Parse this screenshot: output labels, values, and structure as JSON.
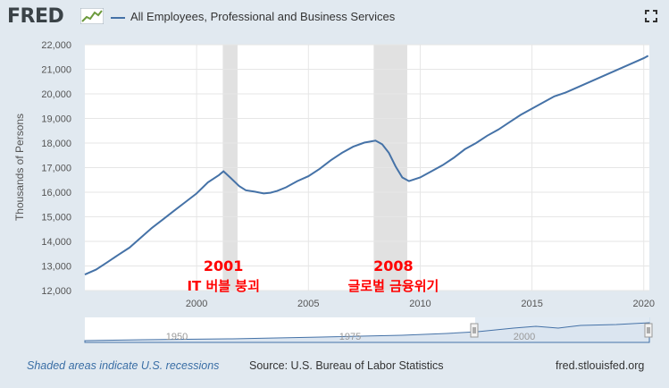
{
  "header": {
    "logo_text": "FRED",
    "series_title": "All Employees, Professional and Business Services",
    "series_color": "#4572a7"
  },
  "footer": {
    "recession_note": "Shaded areas indicate U.S. recessions",
    "source": "Source: U.S. Bureau of Labor Statistics",
    "site": "fred.stlouisfed.org"
  },
  "annotations": [
    {
      "year": "2001",
      "caption": "IT 버블 붕괴",
      "x_center": 2001.2
    },
    {
      "year": "2008",
      "caption": "글로벌 금융위기",
      "x_center": 2008.8
    }
  ],
  "chart_data": {
    "type": "line",
    "title": "All Employees, Professional and Business Services",
    "ylabel": "Thousands of Persons",
    "xlabel": "",
    "xlim": [
      1995.0,
      2020.25
    ],
    "ylim": [
      12000,
      22000
    ],
    "x_ticks": [
      2000,
      2005,
      2010,
      2015,
      2020
    ],
    "y_ticks": [
      12000,
      13000,
      14000,
      15000,
      16000,
      17000,
      18000,
      19000,
      20000,
      21000,
      22000
    ],
    "y_tick_labels": [
      "12,000",
      "13,000",
      "14,000",
      "15,000",
      "16,000",
      "17,000",
      "18,000",
      "19,000",
      "20,000",
      "21,000",
      "22,000"
    ],
    "grid": true,
    "recessions": [
      [
        2001.17,
        2001.83
      ],
      [
        2007.92,
        2009.42
      ]
    ],
    "series": [
      {
        "name": "All Employees, Professional and Business Services",
        "color": "#4572a7",
        "x": [
          1995.0,
          1995.5,
          1996.0,
          1996.5,
          1997.0,
          1997.5,
          1998.0,
          1998.5,
          1999.0,
          1999.5,
          2000.0,
          2000.5,
          2001.0,
          2001.2,
          2001.5,
          2001.9,
          2002.2,
          2002.6,
          2003.0,
          2003.3,
          2003.6,
          2004.0,
          2004.5,
          2005.0,
          2005.5,
          2006.0,
          2006.5,
          2007.0,
          2007.5,
          2008.0,
          2008.3,
          2008.6,
          2008.9,
          2009.2,
          2009.5,
          2010.0,
          2010.5,
          2011.0,
          2011.5,
          2012.0,
          2012.5,
          2013.0,
          2013.5,
          2014.0,
          2014.5,
          2015.0,
          2015.5,
          2016.0,
          2016.5,
          2017.0,
          2017.5,
          2018.0,
          2018.5,
          2019.0,
          2019.5,
          2020.0,
          2020.2
        ],
        "values": [
          12650,
          12850,
          13150,
          13450,
          13750,
          14150,
          14550,
          14900,
          15250,
          15600,
          15950,
          16400,
          16700,
          16850,
          16600,
          16250,
          16080,
          16020,
          15950,
          15980,
          16050,
          16200,
          16450,
          16650,
          16950,
          17300,
          17600,
          17850,
          18020,
          18100,
          17950,
          17600,
          17050,
          16600,
          16450,
          16600,
          16850,
          17100,
          17400,
          17750,
          18000,
          18300,
          18550,
          18850,
          19150,
          19400,
          19650,
          19900,
          20050,
          20250,
          20450,
          20650,
          20850,
          21050,
          21250,
          21450,
          21550
        ]
      }
    ]
  }
}
